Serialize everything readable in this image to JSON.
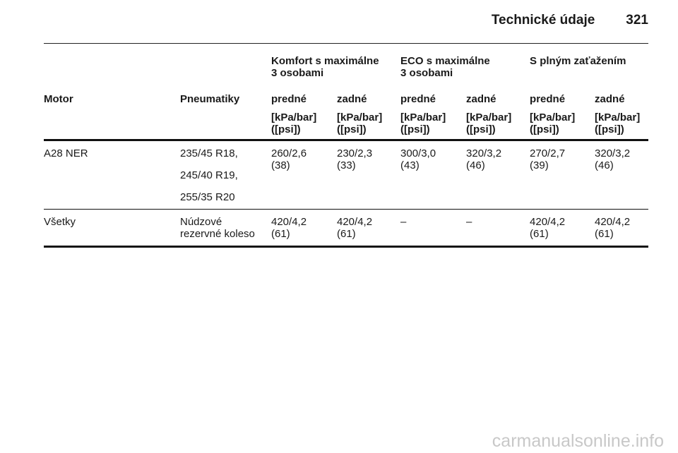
{
  "header": {
    "title": "Technické údaje",
    "page": "321"
  },
  "table": {
    "groups": [
      "Komfort s maximálne\n3 osobami",
      "ECO s maximálne\n3 osobami",
      "S plným zaťažením"
    ],
    "columns": [
      "Motor",
      "Pneumatiky",
      "predné",
      "zadné",
      "predné",
      "zadné",
      "predné",
      "zadné"
    ],
    "units": [
      "[kPa/bar]\n([psi])",
      "[kPa/bar]\n([psi])",
      "[kPa/bar]\n([psi])",
      "[kPa/bar]\n([psi])",
      "[kPa/bar]\n([psi])",
      "[kPa/bar]\n([psi])"
    ],
    "rows": [
      [
        "A28 NER",
        [
          "235/45 R18,",
          "245/40 R19,",
          "255/35 R20"
        ],
        "260/2,6\n(38)",
        "230/2,3\n(33)",
        "300/3,0\n(43)",
        "320/3,2\n(46)",
        "270/2,7\n(39)",
        "320/3,2\n(46)"
      ],
      [
        "Všetky",
        "Núdzové\nrezervné koleso",
        "420/4,2\n(61)",
        "420/4,2\n(61)",
        "–",
        "–",
        "420/4,2\n(61)",
        "420/4,2\n(61)"
      ]
    ]
  },
  "footer": {
    "watermark": "carmanualsonline.info"
  }
}
